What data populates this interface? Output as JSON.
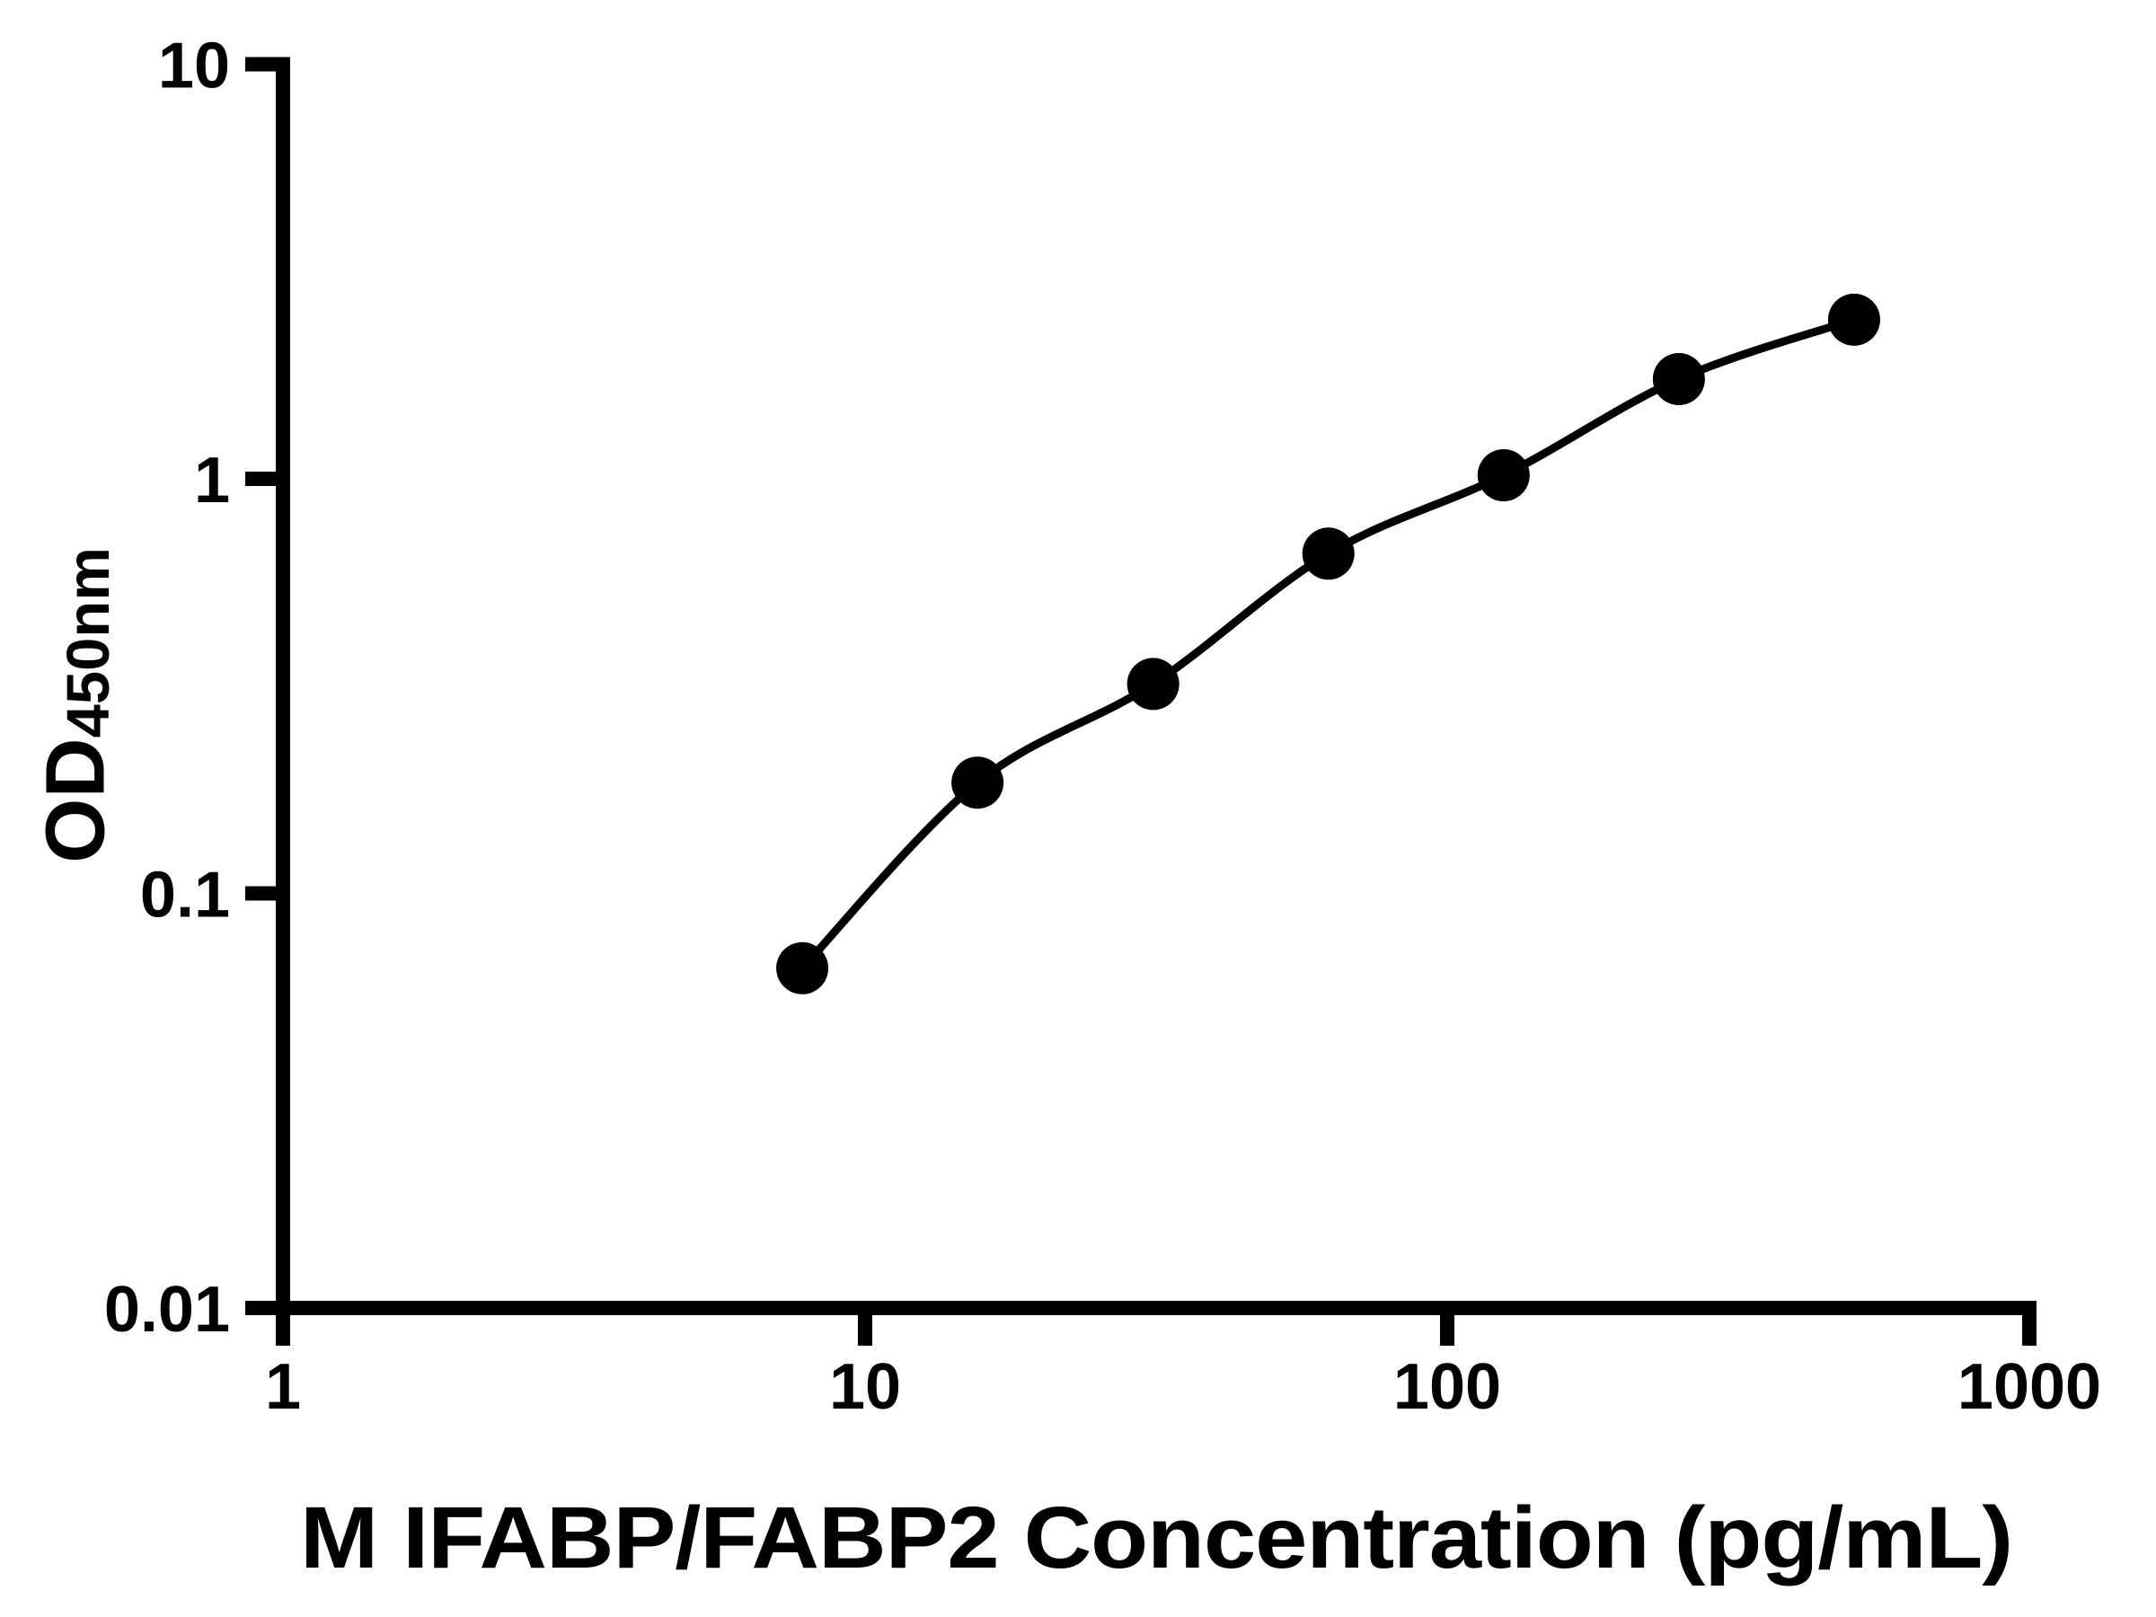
{
  "chart_data": {
    "type": "scatter",
    "title": "",
    "xlabel": "M IFABP/FABP2 Concentration (pg/mL)",
    "ylabel_main": "OD",
    "ylabel_sub": "450nm",
    "x": [
      7.8,
      15.6,
      31.25,
      62.5,
      125,
      250,
      500
    ],
    "y": [
      0.066,
      0.185,
      0.32,
      0.66,
      1.02,
      1.74,
      2.42
    ],
    "x_scale": "log10",
    "y_scale": "log10",
    "xlim": [
      1,
      1000
    ],
    "ylim": [
      0.01,
      10
    ],
    "x_ticks": [
      1,
      10,
      100,
      1000
    ],
    "x_tick_labels": [
      "1",
      "10",
      "100",
      "1000"
    ],
    "y_ticks": [
      10,
      1,
      0.1,
      0.01
    ],
    "y_tick_labels": [
      "10",
      "1",
      "0.1",
      "0.01"
    ],
    "grid": false,
    "legend": false,
    "curve": "smooth-fit-through-points",
    "marker_shape": "filled-circle",
    "marker_color": "#000000",
    "line_color": "#000000",
    "axis_color": "#000000",
    "background": "#ffffff"
  }
}
